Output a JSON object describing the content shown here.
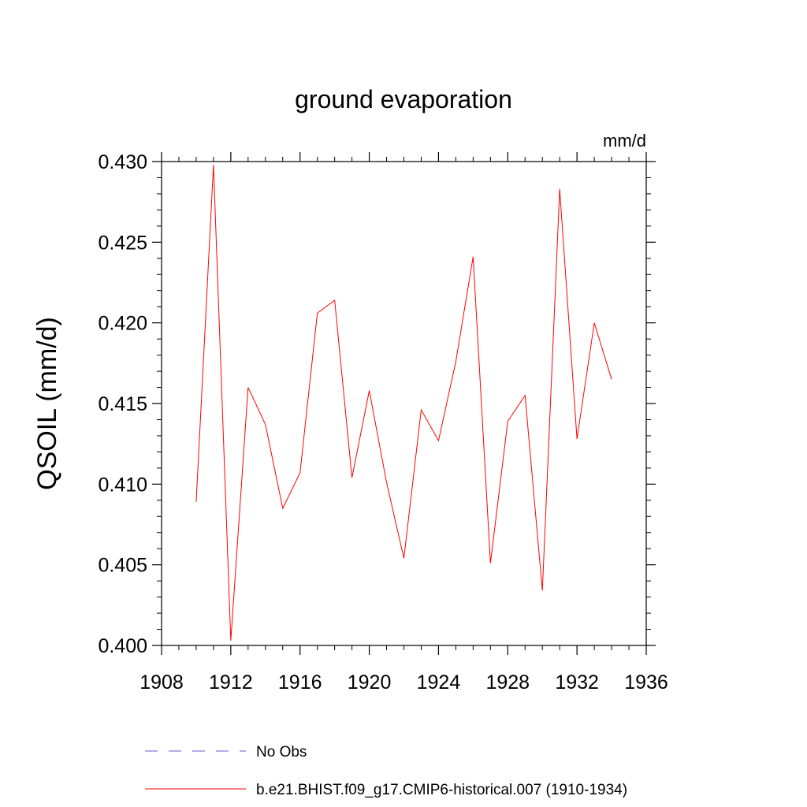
{
  "chart_data": {
    "type": "line",
    "title": "ground evaporation",
    "units": "mm/d",
    "ylabel": "QSOIL  (mm/d)",
    "xlabel": "",
    "xlim": [
      1908,
      1936
    ],
    "ylim": [
      0.4,
      0.43
    ],
    "x_ticks": [
      1908,
      1912,
      1916,
      1920,
      1924,
      1928,
      1932,
      1936
    ],
    "x_tick_labels": [
      "1908",
      "1912",
      "1916",
      "1920",
      "1924",
      "1928",
      "1932",
      "1936"
    ],
    "y_ticks": [
      0.4,
      0.405,
      0.41,
      0.415,
      0.42,
      0.425,
      0.43
    ],
    "y_tick_labels": [
      "0.400",
      "0.405",
      "0.410",
      "0.415",
      "0.420",
      "0.425",
      "0.430"
    ],
    "grid": false,
    "legend_position": "bottom",
    "series": [
      {
        "name": "b.e21.BHIST.f09_g17.CMIP6-historical.007 (1910-1934)",
        "color": "#ff0000",
        "dash": "solid",
        "x": [
          1910,
          1911,
          1912,
          1913,
          1914,
          1915,
          1916,
          1917,
          1918,
          1919,
          1920,
          1921,
          1922,
          1923,
          1924,
          1925,
          1926,
          1927,
          1928,
          1929,
          1930,
          1931,
          1932,
          1933,
          1934
        ],
        "values": [
          0.4089,
          0.4298,
          0.4003,
          0.416,
          0.4137,
          0.4085,
          0.4107,
          0.4206,
          0.4214,
          0.4104,
          0.4158,
          0.4101,
          0.4054,
          0.4146,
          0.4127,
          0.4176,
          0.4241,
          0.4051,
          0.4139,
          0.4155,
          0.4034,
          0.4283,
          0.4128,
          0.42,
          0.4165
        ]
      }
    ],
    "legend": [
      {
        "label": "No Obs",
        "color": "#6a5acd",
        "dash": "dashed"
      },
      {
        "label": "b.e21.BHIST.f09_g17.CMIP6-historical.007 (1910-1934)",
        "color": "#ff0000",
        "dash": "solid"
      }
    ]
  }
}
